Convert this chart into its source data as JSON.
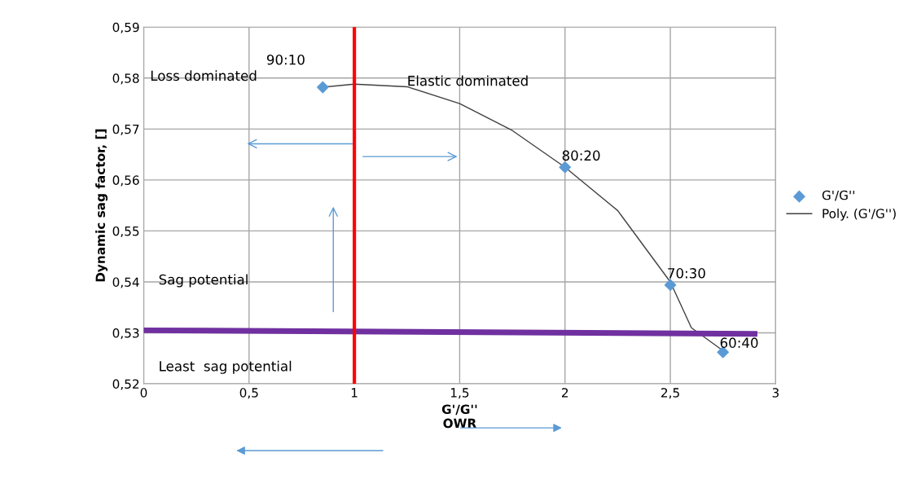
{
  "chart_data": {
    "type": "scatter",
    "xlabel": "G'/G''\nOWR",
    "ylabel": "Dynamic sag factor, []",
    "xlim": [
      0,
      3
    ],
    "ylim": [
      0.52,
      0.59
    ],
    "xticks": [
      0,
      {
        "value": 0.5,
        "label": "0,5"
      },
      1,
      {
        "value": 1.5,
        "label": "1,5"
      },
      2,
      {
        "value": 2.5,
        "label": "2,5"
      },
      3
    ],
    "yticks": [
      {
        "value": 0.52,
        "label": "0,52"
      },
      {
        "value": 0.53,
        "label": "0,53"
      },
      {
        "value": 0.54,
        "label": "0,54"
      },
      {
        "value": 0.55,
        "label": "0,55"
      },
      {
        "value": 0.56,
        "label": "0,56"
      },
      {
        "value": 0.57,
        "label": "0,57"
      },
      {
        "value": 0.58,
        "label": "0,58"
      },
      {
        "value": 0.59,
        "label": "0,59"
      }
    ],
    "grid": true,
    "legend": "right",
    "series": [
      {
        "name": "G'/G''",
        "color": "#5b9bd5",
        "marker": "diamond",
        "x": [
          0.85,
          2.0,
          2.5,
          2.75
        ],
        "values": [
          0.5782,
          0.5625,
          0.5394,
          0.5262
        ]
      },
      {
        "name": "Poly. (G'/G'')",
        "type": "line",
        "color": "#404040",
        "marker": "none",
        "x": [
          0.85,
          1.0,
          1.25,
          1.5,
          1.75,
          2.0,
          2.25,
          2.5,
          2.6,
          2.75
        ],
        "values": [
          0.5782,
          0.5788,
          0.5783,
          0.575,
          0.5697,
          0.5625,
          0.554,
          0.54,
          0.531,
          0.5265
        ]
      },
      {
        "type": "line",
        "color": "#7030a0",
        "marker": "none",
        "x": [
          0,
          2.9
        ],
        "values": [
          0.5305,
          0.5298
        ]
      }
    ],
    "ref_lines": [
      {
        "axis": "x",
        "value": 1,
        "color": "#ff0000"
      }
    ],
    "annotations": [
      "Loss dominated",
      "Elastic dominated",
      "Sag potential",
      "Least  sag potential",
      {
        "text": "90:10",
        "x": 0.85,
        "y": 0.5782
      },
      {
        "text": "80:20",
        "x": 2.0,
        "y": 0.5625
      },
      {
        "text": "70:30",
        "x": 2.5,
        "y": 0.5394
      },
      {
        "text": "60:40",
        "x": 2.75,
        "y": 0.5262
      }
    ]
  }
}
